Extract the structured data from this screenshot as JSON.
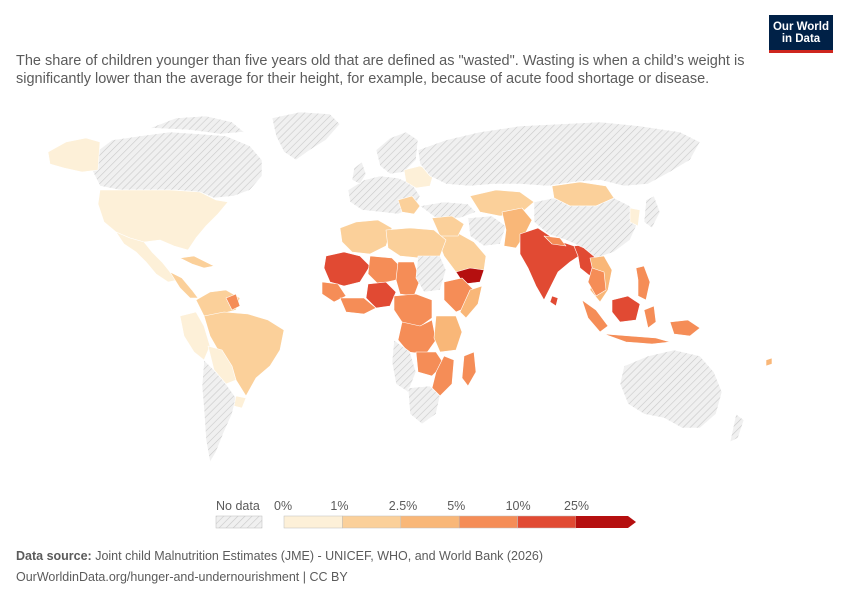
{
  "subtitle": "The share of children younger than five years old that are defined as \"wasted\". Wasting is when a child’s weight is significantly lower than the average for their height, for example, because of acute food shortage or disease.",
  "logo": {
    "line1": "Our World",
    "line2": "in Data"
  },
  "legend": {
    "no_data_label": "No data",
    "bins": [
      {
        "label": "0%",
        "color": "#fdf0d8"
      },
      {
        "label": "1%",
        "color": "#fbd09a"
      },
      {
        "label": "2.5%",
        "color": "#f9b778"
      },
      {
        "label": "5%",
        "color": "#f58d57"
      },
      {
        "label": "10%",
        "color": "#e14a33"
      },
      {
        "label": "25%",
        "color": "#b50f0f"
      }
    ]
  },
  "footer": {
    "source_label": "Data source:",
    "source_text": " Joint child Malnutrition Estimates (JME) - UNICEF, WHO, and World Bank (2026)",
    "url_line": "OurWorldinData.org/hunger-and-undernourishment | CC BY"
  },
  "colors": {
    "no_data_fill": "#ececec",
    "no_data_hatch": "#c8c8c8",
    "border": "#ffffff",
    "logo_bg": "#002147",
    "logo_accent": "#ce261e"
  }
}
